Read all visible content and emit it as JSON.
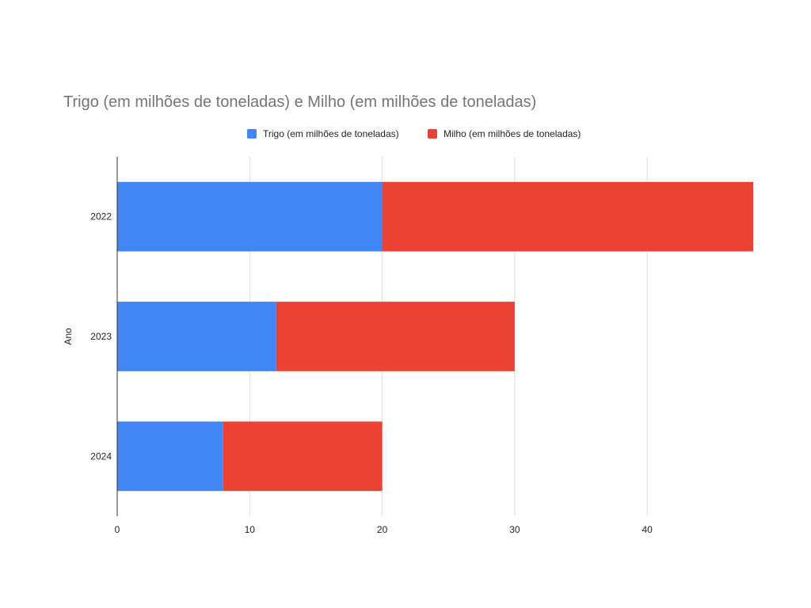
{
  "chart_data": {
    "type": "bar",
    "orientation": "horizontal",
    "stacked": true,
    "title": "Trigo (em milhões de toneladas) e Milho (em milhões de toneladas)",
    "xlabel": "",
    "ylabel": "Ano",
    "categories": [
      "2022",
      "2023",
      "2024"
    ],
    "series": [
      {
        "name": "Trigo (em milhões de toneladas)",
        "color": "#4285F4",
        "values": [
          20,
          12,
          8
        ]
      },
      {
        "name": "Milho (em milhões de toneladas)",
        "color": "#EA4335",
        "values": [
          28,
          18,
          12
        ]
      }
    ],
    "xlim": [
      0,
      48
    ],
    "xticks": [
      "0",
      "10",
      "20",
      "30",
      "40"
    ],
    "grid": true,
    "legend_position": "top"
  }
}
